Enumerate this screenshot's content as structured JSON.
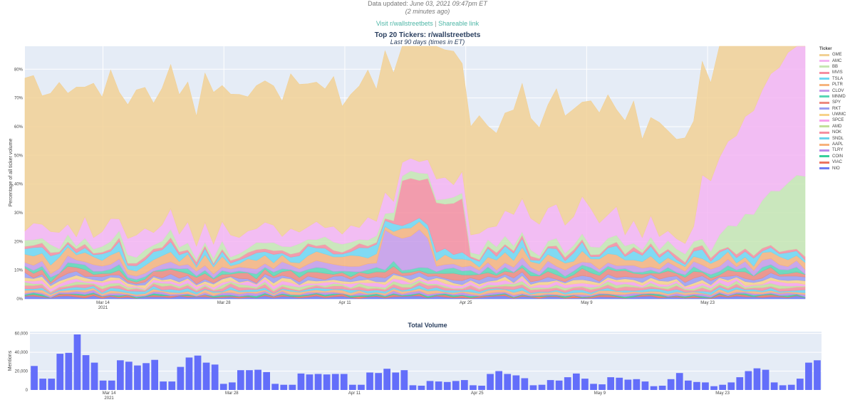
{
  "header": {
    "updated_prefix": "Data updated:",
    "updated_value": "June 03, 2021 09:47pm ET",
    "ago": "(2 minutes ago)"
  },
  "links": {
    "subreddit": "Visit r/wallstreetbets",
    "separator": "|",
    "share": "Shareable link"
  },
  "chart_data": [
    {
      "type": "area",
      "stacked": true,
      "title": "Top 20 Tickers: r/wallstreetbets",
      "subtitle": "Last 90 days (times in ET)",
      "ylabel": "Percentage of all ticker volume",
      "ylim": [
        0,
        88
      ],
      "yticks": [
        "0%",
        "10%",
        "20%",
        "30%",
        "40%",
        "50%",
        "60%",
        "70%",
        "80%"
      ],
      "xlabels": [
        "Mar 14\n2021",
        "Mar 28",
        "Apr 11",
        "Apr 25",
        "May 9",
        "May 23"
      ],
      "legend_title": "Ticker",
      "legend_position": "right",
      "grid": true,
      "series": [
        {
          "name": "GME",
          "color": "#f2d195",
          "base": 27,
          "amp": 6,
          "seed": 1
        },
        {
          "name": "AMC",
          "color": "#f4b5f2",
          "base": 5,
          "amp": 3,
          "seed": 2
        },
        {
          "name": "BB",
          "color": "#c6e6b3",
          "base": 2,
          "amp": 1.5,
          "seed": 3
        },
        {
          "name": "MVIS",
          "color": "#f58ea0",
          "base": 0.8,
          "amp": 0.8,
          "seed": 4
        },
        {
          "name": "TSLA",
          "color": "#6fd7f2",
          "base": 2,
          "amp": 1.5,
          "seed": 5
        },
        {
          "name": "PLTR",
          "color": "#f6b47e",
          "base": 2.5,
          "amp": 1.5,
          "seed": 6
        },
        {
          "name": "CLOV",
          "color": "#c59be9",
          "base": 1.5,
          "amp": 1.5,
          "seed": 7
        },
        {
          "name": "MNMD",
          "color": "#5ad6b5",
          "base": 1,
          "amp": 1,
          "seed": 8
        },
        {
          "name": "SPY",
          "color": "#ec8a7f",
          "base": 1.5,
          "amp": 1,
          "seed": 9
        },
        {
          "name": "RKT",
          "color": "#9b9ef0",
          "base": 1,
          "amp": 0.8,
          "seed": 10
        },
        {
          "name": "UWMC",
          "color": "#f7d28a",
          "base": 0.8,
          "amp": 0.6,
          "seed": 11
        },
        {
          "name": "SPCE",
          "color": "#f7a3eb",
          "base": 0.8,
          "amp": 0.6,
          "seed": 12
        },
        {
          "name": "AMD",
          "color": "#c2df9a",
          "base": 0.7,
          "amp": 0.5,
          "seed": 13
        },
        {
          "name": "NOK",
          "color": "#f58fa0",
          "base": 0.8,
          "amp": 0.5,
          "seed": 14
        },
        {
          "name": "SNDL",
          "color": "#6bd2ec",
          "base": 0.6,
          "amp": 0.5,
          "seed": 15
        },
        {
          "name": "AAPL",
          "color": "#f7b27c",
          "base": 0.7,
          "amp": 0.4,
          "seed": 16
        },
        {
          "name": "TLRY",
          "color": "#b98ce9",
          "base": 0.5,
          "amp": 0.4,
          "seed": 17
        },
        {
          "name": "COIN",
          "color": "#37cf9c",
          "base": 0.3,
          "amp": 0.3,
          "seed": 18
        },
        {
          "name": "VIAC",
          "color": "#ec7560",
          "base": 0.4,
          "amp": 0.4,
          "seed": 19
        },
        {
          "name": "NIO",
          "color": "#6f7cf2",
          "base": 0.6,
          "amp": 0.5,
          "seed": 20
        }
      ]
    },
    {
      "type": "bar",
      "title": "Total Volume",
      "ylabel": "Mentions",
      "ylim": [
        0,
        62000
      ],
      "yticks": [
        "0",
        "20,000",
        "40,000",
        "60,000"
      ],
      "xlabels": [
        "Mar 14\n2021",
        "Mar 28",
        "Apr 11",
        "Apr 25",
        "May 9",
        "May 23"
      ],
      "color": "#636efa",
      "values": [
        25500,
        12000,
        12000,
        38500,
        39500,
        59000,
        37000,
        29000,
        10000,
        10000,
        31500,
        30000,
        26000,
        28500,
        32000,
        9000,
        9000,
        24500,
        34500,
        36500,
        29000,
        27000,
        6500,
        8000,
        21000,
        21000,
        21500,
        19000,
        6500,
        5500,
        5500,
        17500,
        16500,
        17000,
        16500,
        17000,
        17000,
        5500,
        5500,
        18500,
        18000,
        22500,
        18500,
        21000,
        5000,
        4500,
        9500,
        9000,
        8500,
        9500,
        10500,
        5000,
        4500,
        17000,
        20000,
        17000,
        15500,
        12500,
        5000,
        5500,
        10500,
        10000,
        13500,
        17500,
        12000,
        6500,
        6000,
        13500,
        13000,
        11000,
        11500,
        9000,
        4000,
        4500,
        11500,
        18000,
        10000,
        8500,
        8000,
        4000,
        5500,
        8000,
        13500,
        20000,
        23000,
        21500,
        8000,
        5000,
        5500,
        12000,
        29000,
        31500
      ]
    }
  ]
}
